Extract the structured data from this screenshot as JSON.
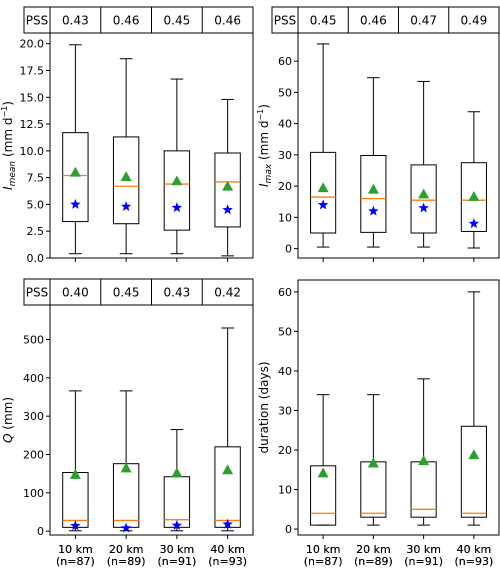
{
  "chart_data": [
    {
      "type": "box",
      "ylabel_main": "I",
      "ylabel_sub": "mean",
      "ylabel_unit": "(mm d",
      "ylabel_exp": "−1",
      "ylabel_close": ")",
      "ylim": [
        0,
        21
      ],
      "yticks": [
        "0.0",
        "2.5",
        "5.0",
        "7.5",
        "10.0",
        "12.5",
        "15.0",
        "17.5",
        "20.0"
      ],
      "ytick_values": [
        0,
        2.5,
        5,
        7.5,
        10,
        12.5,
        15,
        17.5,
        20
      ],
      "categories": [
        "10 km",
        "20 km",
        "30 km",
        "40 km"
      ],
      "counts": [
        "(n=87)",
        "(n=89)",
        "(n=91)",
        "(n=93)"
      ],
      "pss_label": "PSS",
      "pss": [
        "0.43",
        "0.46",
        "0.45",
        "0.46"
      ],
      "boxes": [
        {
          "whislo": 0.4,
          "q1": 3.4,
          "med": 7.7,
          "q3": 11.7,
          "whishi": 19.9,
          "mean": 8.0,
          "star": 5.0
        },
        {
          "whislo": 0.4,
          "q1": 3.2,
          "med": 6.7,
          "q3": 11.3,
          "whishi": 18.6,
          "mean": 7.6,
          "star": 4.8
        },
        {
          "whislo": 0.4,
          "q1": 2.6,
          "med": 6.9,
          "q3": 10.0,
          "whishi": 16.7,
          "mean": 7.2,
          "star": 4.7
        },
        {
          "whislo": 0.2,
          "q1": 2.9,
          "med": 7.1,
          "q3": 9.8,
          "whishi": 14.8,
          "mean": 6.7,
          "star": 4.5
        }
      ]
    },
    {
      "type": "box",
      "ylabel_main": "I",
      "ylabel_sub": "max",
      "ylabel_unit": "(mm d",
      "ylabel_exp": "−1",
      "ylabel_close": ")",
      "ylim": [
        -3,
        69
      ],
      "yticks": [
        "0",
        "10",
        "20",
        "30",
        "40",
        "50",
        "60"
      ],
      "ytick_values": [
        0,
        10,
        20,
        30,
        40,
        50,
        60
      ],
      "categories": [
        "10 km",
        "20 km",
        "30 km",
        "40 km"
      ],
      "counts": [
        "(n=87)",
        "(n=89)",
        "(n=91)",
        "(n=93)"
      ],
      "pss_label": "PSS",
      "pss": [
        "0.45",
        "0.46",
        "0.47",
        "0.49"
      ],
      "boxes": [
        {
          "whislo": 0.5,
          "q1": 5.0,
          "med": 16.5,
          "q3": 30.8,
          "whishi": 65.5,
          "mean": 19.5,
          "star": 14.0
        },
        {
          "whislo": 0.5,
          "q1": 5.2,
          "med": 16.0,
          "q3": 29.8,
          "whishi": 54.7,
          "mean": 19.0,
          "star": 12.0
        },
        {
          "whislo": 0.5,
          "q1": 5.0,
          "med": 15.5,
          "q3": 26.8,
          "whishi": 53.5,
          "mean": 17.5,
          "star": 13.0
        },
        {
          "whislo": 0.2,
          "q1": 5.5,
          "med": 15.5,
          "q3": 27.5,
          "whishi": 43.8,
          "mean": 16.7,
          "star": 8.0
        }
      ]
    },
    {
      "type": "box",
      "ylabel_main": "Q",
      "ylabel_sub": "",
      "ylabel_unit": "(mm)",
      "ylabel_exp": "",
      "ylabel_close": "",
      "ylim": [
        -10,
        590
      ],
      "yticks": [
        "0",
        "100",
        "200",
        "300",
        "400",
        "500"
      ],
      "ytick_values": [
        0,
        100,
        200,
        300,
        400,
        500
      ],
      "categories": [
        "10 km",
        "20 km",
        "30 km",
        "40 km"
      ],
      "counts": [
        "(n=87)",
        "(n=89)",
        "(n=91)",
        "(n=93)"
      ],
      "pss_label": "PSS",
      "pss": [
        "0.40",
        "0.45",
        "0.43",
        "0.42"
      ],
      "boxes": [
        {
          "whislo": 1,
          "q1": 10,
          "med": 28,
          "q3": 153,
          "whishi": 366,
          "mean": 148,
          "star": 14
        },
        {
          "whislo": 1,
          "q1": 10,
          "med": 28,
          "q3": 176,
          "whishi": 366,
          "mean": 165,
          "star": 8
        },
        {
          "whislo": 1,
          "q1": 10,
          "med": 30,
          "q3": 142,
          "whishi": 265,
          "mean": 152,
          "star": 15
        },
        {
          "whislo": 1,
          "q1": 10,
          "med": 28,
          "q3": 220,
          "whishi": 530,
          "mean": 160,
          "star": 18
        }
      ]
    },
    {
      "type": "box",
      "ylabel_main": "duration (days)",
      "ylabel_sub": "",
      "ylabel_unit": "",
      "ylabel_exp": "",
      "ylabel_close": "",
      "ylim": [
        -1.5,
        63
      ],
      "yticks": [
        "0",
        "10",
        "20",
        "30",
        "40",
        "50",
        "60"
      ],
      "ytick_values": [
        0,
        10,
        20,
        30,
        40,
        50,
        60
      ],
      "categories": [
        "10 km",
        "20 km",
        "30 km",
        "40 km"
      ],
      "counts": [
        "(n=87)",
        "(n=89)",
        "(n=91)",
        "(n=93)"
      ],
      "pss_label": "",
      "pss": [],
      "boxes": [
        {
          "whislo": 1,
          "q1": 1,
          "med": 4,
          "q3": 16,
          "whishi": 34,
          "mean": 14.2,
          "star": null
        },
        {
          "whislo": 1,
          "q1": 3,
          "med": 4,
          "q3": 17,
          "whishi": 34,
          "mean": 16.7,
          "star": null
        },
        {
          "whislo": 1,
          "q1": 3,
          "med": 5,
          "q3": 17,
          "whishi": 38,
          "mean": 17.3,
          "star": null
        },
        {
          "whislo": 1,
          "q1": 3,
          "med": 4,
          "q3": 26,
          "whishi": 60,
          "mean": 18.8,
          "star": null
        }
      ]
    }
  ],
  "colors": {
    "median": "#ff7f0e",
    "mean_marker": "#2ca02c",
    "star_marker": "#0000ff",
    "box": "#000000"
  }
}
